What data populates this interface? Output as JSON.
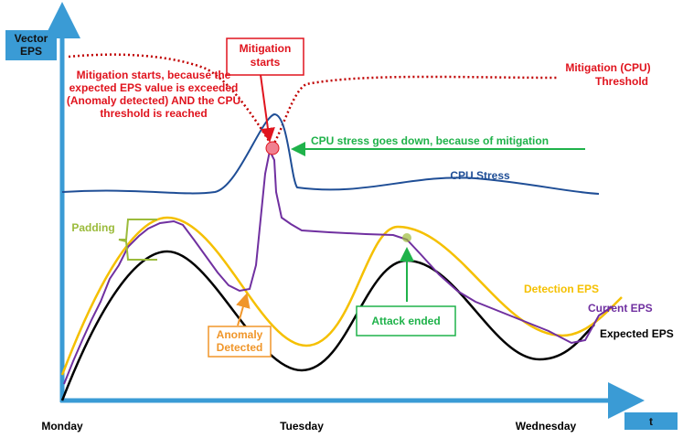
{
  "axes": {
    "y_label": [
      "Vector",
      "EPS"
    ],
    "x_label": "t",
    "x_categories": [
      "Monday",
      "Tuesday",
      "Wednesday"
    ]
  },
  "annotations": {
    "mitigation_box": [
      "Mitigation",
      "starts"
    ],
    "mitigation_reason": [
      "Mitigation starts, because the",
      "expected EPS value is exceeded",
      "(Anomaly detected) AND the CPU",
      "threshold is reached"
    ],
    "cpu_threshold": [
      "Mitigation (CPU)",
      "Threshold"
    ],
    "cpu_down": "CPU stress goes down, because of mitigation",
    "padding": "Padding",
    "anomaly_box": [
      "Anomaly",
      "Detected"
    ],
    "attack_box": "Attack ended"
  },
  "series_labels": {
    "cpu_stress": "CPU Stress",
    "detection_eps": "Detection EPS",
    "current_eps": "Current EPS",
    "expected_eps": "Expected EPS"
  }
}
